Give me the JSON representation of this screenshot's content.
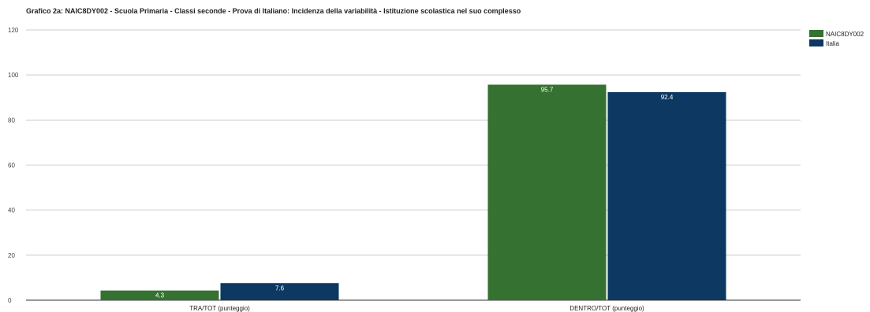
{
  "chart_data": {
    "type": "bar",
    "title": "Grafico 2a: NAIC8DY002 - Scuola Primaria - Classi seconde - Prova di Italiano: Incidenza della variabilità - Istituzione scolastica nel suo complesso",
    "categories": [
      "TRA/TOT (punteggio)",
      "DENTRO/TOT (punteggio)"
    ],
    "series": [
      {
        "name": "NAIC8DY002",
        "values": [
          4.3,
          95.7
        ],
        "color": "#357130"
      },
      {
        "name": "Italia",
        "values": [
          7.6,
          92.4
        ],
        "color": "#0d3862"
      }
    ],
    "ylim": [
      0,
      120
    ],
    "yticks": [
      0,
      20,
      40,
      60,
      80,
      100,
      120
    ],
    "grid": true,
    "legend": "top-right",
    "data_labels": true
  }
}
